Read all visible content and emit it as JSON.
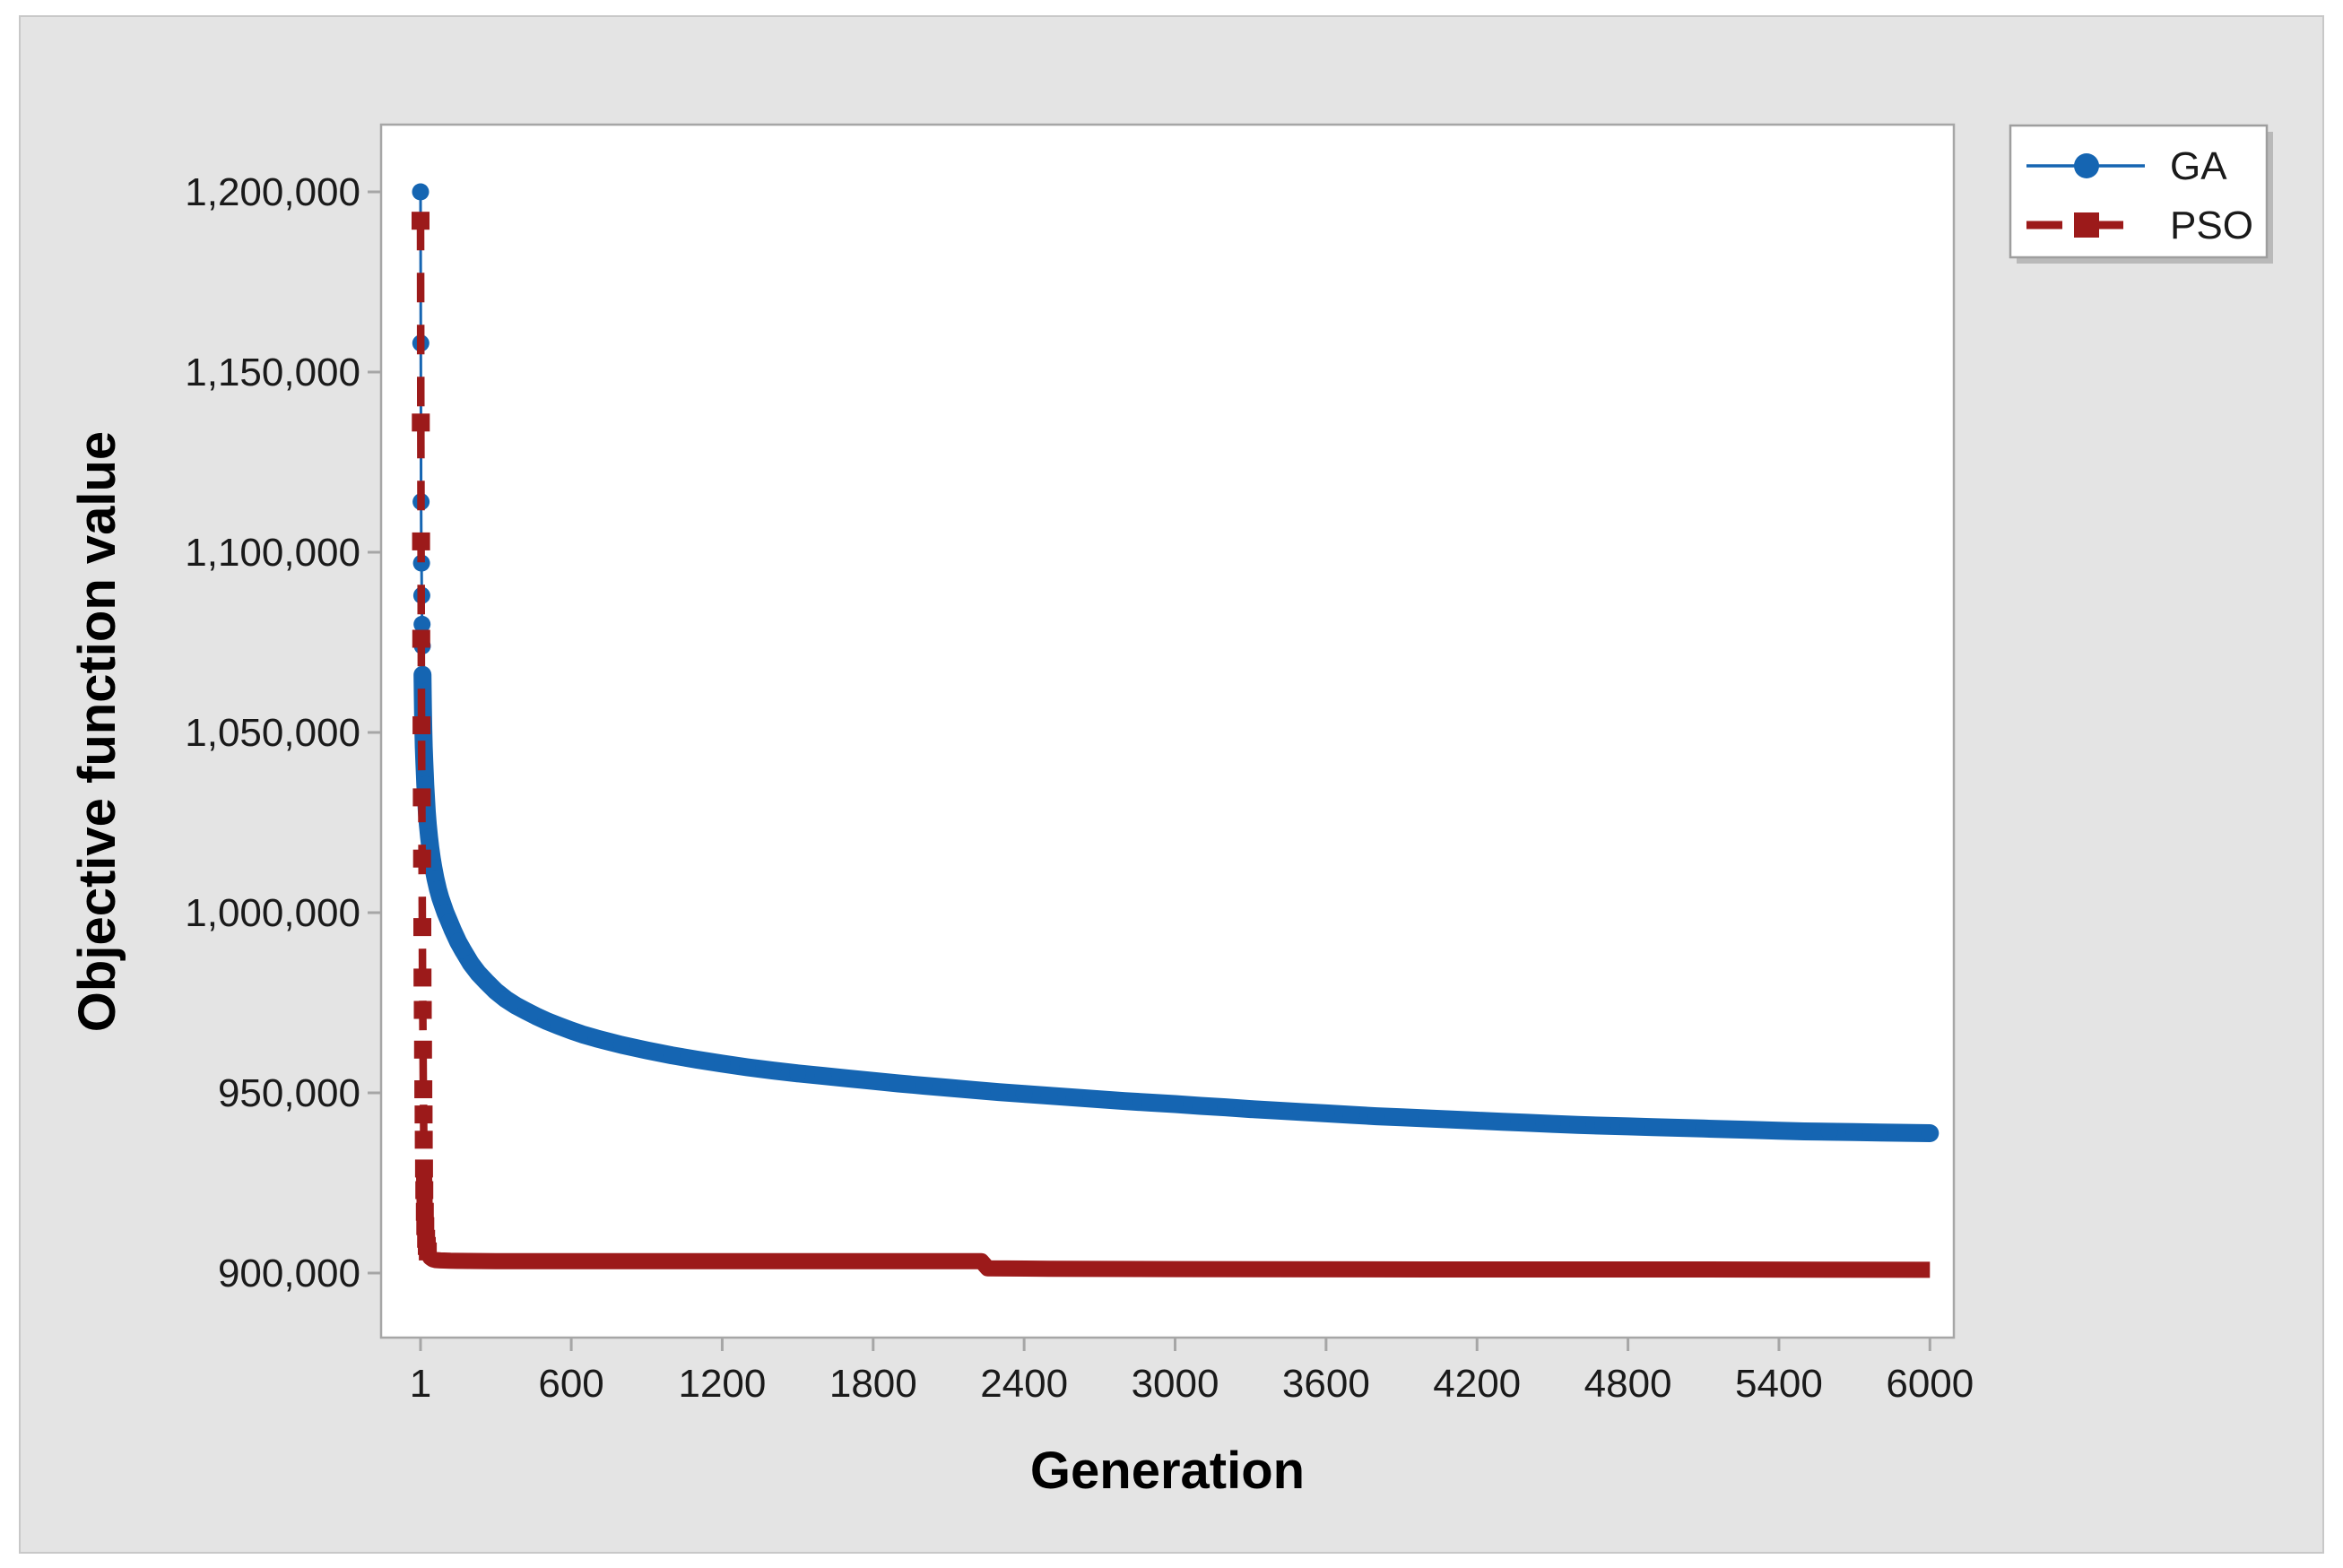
{
  "figure": {
    "page_background": "#ffffff",
    "canvas_background": "#e4e4e4",
    "canvas_border": "#c8c8c8",
    "plot_background": "#ffffff",
    "plot_border": "#a6a6a6",
    "tick_color": "#a6a6a6",
    "text_color": "#1a1a1a"
  },
  "legend": {
    "background": "#ffffff",
    "border": "#9e9e9e",
    "shadow": "#b9b9b9",
    "entries": [
      {
        "label": "GA",
        "marker": "circle-icon",
        "color": "#1565b2"
      },
      {
        "label": "PSO",
        "marker": "square-icon",
        "color": "#9c1a1a"
      }
    ]
  },
  "chart_data": {
    "type": "line",
    "title": "",
    "xlabel": "Generation",
    "ylabel": "Objective function value",
    "grid": false,
    "legend_position": "top-right",
    "xlim": [
      -160,
      6090
    ],
    "ylim": [
      882000,
      1218600
    ],
    "x_ticks": [
      {
        "v": 1,
        "label": "1"
      },
      {
        "v": 600,
        "label": "600"
      },
      {
        "v": 1200,
        "label": "1200"
      },
      {
        "v": 1800,
        "label": "1800"
      },
      {
        "v": 2400,
        "label": "2400"
      },
      {
        "v": 3000,
        "label": "3000"
      },
      {
        "v": 3600,
        "label": "3600"
      },
      {
        "v": 4200,
        "label": "4200"
      },
      {
        "v": 4800,
        "label": "4800"
      },
      {
        "v": 5400,
        "label": "5400"
      },
      {
        "v": 6000,
        "label": "6000"
      }
    ],
    "y_ticks": [
      {
        "v": 900000,
        "label": "900,000"
      },
      {
        "v": 950000,
        "label": "950,000"
      },
      {
        "v": 1000000,
        "label": "1,000,000"
      },
      {
        "v": 1050000,
        "label": "1,050,000"
      },
      {
        "v": 1100000,
        "label": "1,100,000"
      },
      {
        "v": 1150000,
        "label": "1,150,000"
      },
      {
        "v": 1200000,
        "label": "1,200,000"
      }
    ],
    "series": [
      {
        "name": "GA",
        "color": "#1565b2",
        "marker": "circle",
        "line_style": "solid",
        "points": [
          [
            1,
            1200000
          ],
          [
            2,
            1158000
          ],
          [
            3,
            1114000
          ],
          [
            4,
            1103000
          ],
          [
            5,
            1097000
          ],
          [
            6,
            1088000
          ],
          [
            7,
            1080000
          ],
          [
            8,
            1074000
          ],
          [
            9,
            1066000
          ],
          [
            10,
            1060000
          ],
          [
            11,
            1055000
          ],
          [
            12,
            1051000
          ],
          [
            14,
            1046000
          ],
          [
            16,
            1042000
          ],
          [
            18,
            1038500
          ],
          [
            20,
            1035500
          ],
          [
            23,
            1031500
          ],
          [
            26,
            1028000
          ],
          [
            30,
            1024500
          ],
          [
            35,
            1021000
          ],
          [
            40,
            1018000
          ],
          [
            46,
            1015000
          ],
          [
            52,
            1012500
          ],
          [
            60,
            1009500
          ],
          [
            70,
            1006500
          ],
          [
            80,
            1004000
          ],
          [
            90,
            1002000
          ],
          [
            100,
            1000000
          ],
          [
            115,
            997500
          ],
          [
            130,
            995000
          ],
          [
            150,
            992000
          ],
          [
            170,
            989500
          ],
          [
            200,
            986000
          ],
          [
            230,
            983200
          ],
          [
            260,
            981000
          ],
          [
            300,
            978200
          ],
          [
            340,
            976000
          ],
          [
            380,
            974200
          ],
          [
            420,
            972700
          ],
          [
            460,
            971300
          ],
          [
            500,
            970000
          ],
          [
            550,
            968600
          ],
          [
            600,
            967300
          ],
          [
            650,
            966100
          ],
          [
            700,
            965100
          ],
          [
            750,
            964200
          ],
          [
            800,
            963300
          ],
          [
            900,
            961800
          ],
          [
            1000,
            960400
          ],
          [
            1100,
            959200
          ],
          [
            1200,
            958100
          ],
          [
            1300,
            957100
          ],
          [
            1400,
            956200
          ],
          [
            1500,
            955400
          ],
          [
            1600,
            954700
          ],
          [
            1700,
            954000
          ],
          [
            1800,
            953300
          ],
          [
            1900,
            952600
          ],
          [
            2000,
            952000
          ],
          [
            2100,
            951400
          ],
          [
            2200,
            950800
          ],
          [
            2300,
            950200
          ],
          [
            2400,
            949700
          ],
          [
            2500,
            949200
          ],
          [
            2600,
            948700
          ],
          [
            2700,
            948200
          ],
          [
            2800,
            947700
          ],
          [
            2900,
            947300
          ],
          [
            3000,
            946900
          ],
          [
            3100,
            946400
          ],
          [
            3200,
            946000
          ],
          [
            3300,
            945500
          ],
          [
            3400,
            945100
          ],
          [
            3500,
            944700
          ],
          [
            3600,
            944300
          ],
          [
            3700,
            943900
          ],
          [
            3800,
            943500
          ],
          [
            3900,
            943200
          ],
          [
            4000,
            942900
          ],
          [
            4100,
            942600
          ],
          [
            4200,
            942300
          ],
          [
            4300,
            942000
          ],
          [
            4400,
            941700
          ],
          [
            4500,
            941400
          ],
          [
            4600,
            941100
          ],
          [
            4700,
            940900
          ],
          [
            4800,
            940700
          ],
          [
            4900,
            940500
          ],
          [
            5000,
            940300
          ],
          [
            5100,
            940100
          ],
          [
            5200,
            939900
          ],
          [
            5300,
            939700
          ],
          [
            5400,
            939500
          ],
          [
            5500,
            939300
          ],
          [
            5600,
            939200
          ],
          [
            5700,
            939100
          ],
          [
            5800,
            939000
          ],
          [
            5900,
            938900
          ],
          [
            6000,
            938800
          ]
        ]
      },
      {
        "name": "PSO",
        "color": "#9c1a1a",
        "marker": "square",
        "line_style": "dashed",
        "points": [
          [
            1,
            1192000
          ],
          [
            2,
            1136000
          ],
          [
            3,
            1103000
          ],
          [
            4,
            1076000
          ],
          [
            5,
            1052000
          ],
          [
            6,
            1032000
          ],
          [
            7,
            1015000
          ],
          [
            8,
            996000
          ],
          [
            9,
            982000
          ],
          [
            10,
            973000
          ],
          [
            11,
            962000
          ],
          [
            12,
            951000
          ],
          [
            13,
            944000
          ],
          [
            14,
            937000
          ],
          [
            15,
            929000
          ],
          [
            16,
            923000
          ],
          [
            18,
            917000
          ],
          [
            20,
            913000
          ],
          [
            23,
            909500
          ],
          [
            26,
            907500
          ],
          [
            30,
            906000
          ],
          [
            35,
            905000
          ],
          [
            40,
            904300
          ],
          [
            50,
            903800
          ],
          [
            60,
            903600
          ],
          [
            80,
            903500
          ],
          [
            120,
            903400
          ],
          [
            300,
            903300
          ],
          [
            600,
            903300
          ],
          [
            1000,
            903300
          ],
          [
            1500,
            903300
          ],
          [
            2000,
            903300
          ],
          [
            2230,
            903300
          ],
          [
            2255,
            901300
          ],
          [
            2500,
            901200
          ],
          [
            3000,
            901100
          ],
          [
            4000,
            901000
          ],
          [
            5000,
            901000
          ],
          [
            6000,
            900900
          ]
        ]
      }
    ]
  }
}
